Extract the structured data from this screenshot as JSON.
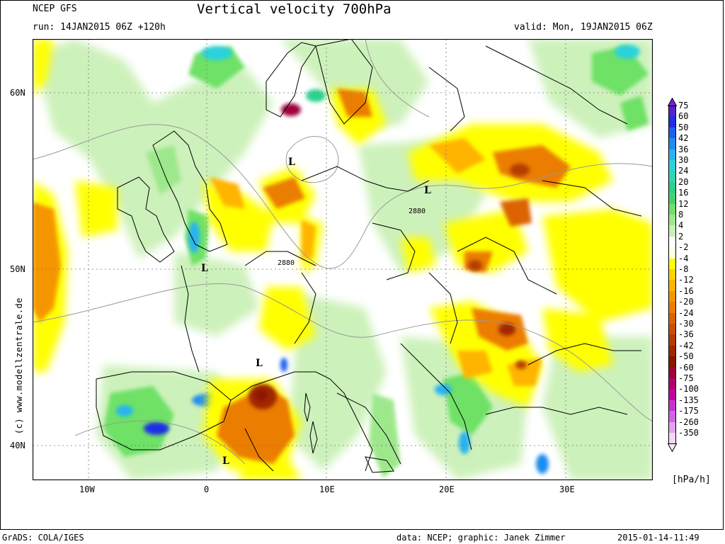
{
  "header": {
    "model": "NCEP GFS",
    "run": "run: 14JAN2015 06Z +120h",
    "title": "Vertical velocity 700hPa",
    "valid": "valid: Mon, 19JAN2015 06Z"
  },
  "axes": {
    "lon_labels": [
      "10W",
      "0",
      "10E",
      "20E",
      "30E"
    ],
    "lat_labels": [
      "60N",
      "50N",
      "40N"
    ]
  },
  "map_labels": {
    "lows": [
      "L",
      "L",
      "L",
      "L",
      "L"
    ],
    "contours": [
      "2880",
      "2880"
    ]
  },
  "colorbar": {
    "unit": "[hPa/h]",
    "levels": [
      "75",
      "60",
      "50",
      "42",
      "36",
      "30",
      "24",
      "20",
      "16",
      "12",
      "8",
      "4",
      "2",
      "-2",
      "-4",
      "-8",
      "-12",
      "-16",
      "-20",
      "-24",
      "-30",
      "-36",
      "-42",
      "-50",
      "-60",
      "-75",
      "-100",
      "-135",
      "-175",
      "-260",
      "-350"
    ],
    "colors": [
      "#5a1fd0",
      "#1e2ee6",
      "#1e5ff0",
      "#1e8cf0",
      "#28b4f0",
      "#2ad2dc",
      "#2ed7b4",
      "#2ad28c",
      "#46d26e",
      "#6ee166",
      "#9ee88c",
      "#c8f0b4",
      "#ffffff",
      "#ffffe0",
      "#ffff00",
      "#ffd200",
      "#ffb400",
      "#f59600",
      "#eb7d00",
      "#dc6400",
      "#c85000",
      "#b43c00",
      "#a02800",
      "#8c1400",
      "#a0003c",
      "#b4006e",
      "#c800a0",
      "#c832d2",
      "#d264e6",
      "#e6a0f0",
      "#f5d7f5"
    ]
  },
  "footer": {
    "left": "GrADS: COLA/IGES",
    "credits": "data: NCEP; graphic: Janek Zimmer",
    "timestamp": "2015-01-14-11:49"
  },
  "side_credit": "(c) www.modellzentrale.de"
}
